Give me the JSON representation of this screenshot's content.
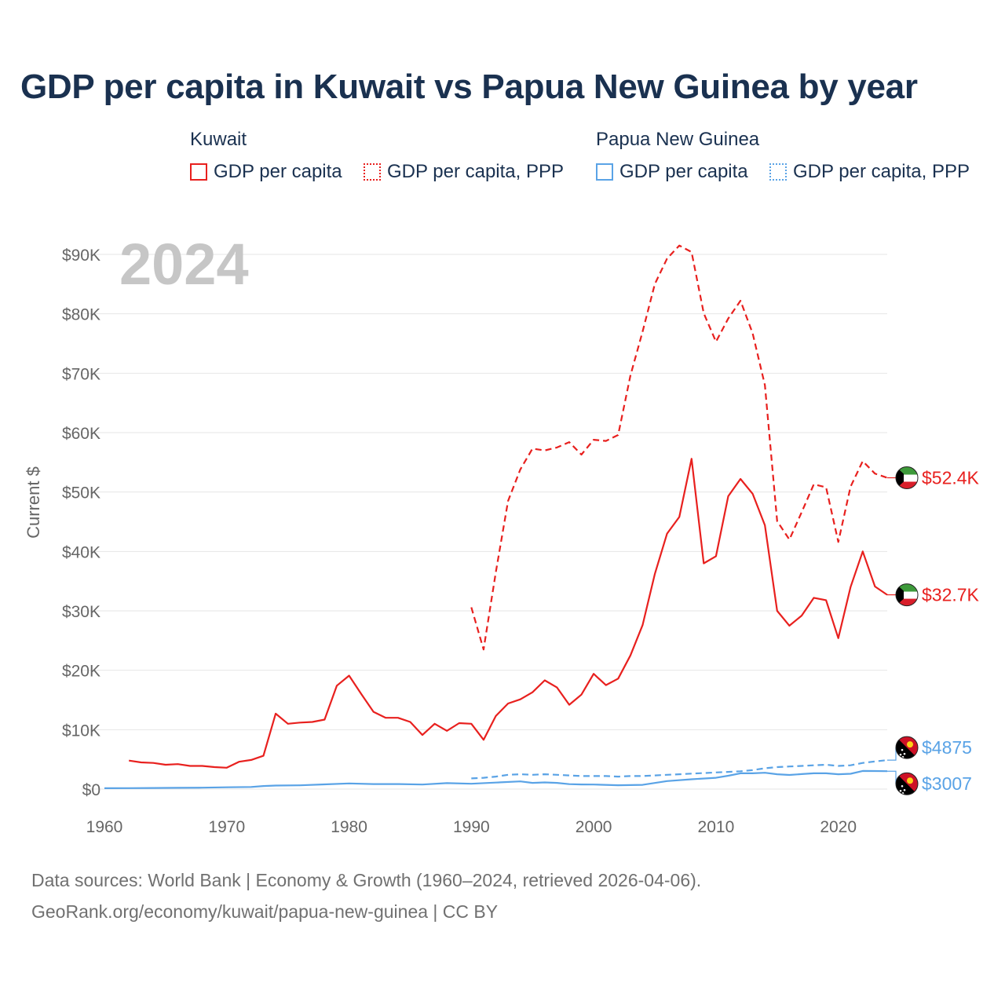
{
  "page": {
    "title": "GDP per capita in Kuwait vs Papua New Guinea by year",
    "source_line1": "Data sources: World Bank | Economy & Growth (1960–2024, retrieved 2026-04-06).",
    "source_line2": "GeoRank.org/economy/kuwait/papua-new-guinea | CC BY"
  },
  "legend": {
    "groups": [
      {
        "country": "Kuwait",
        "items": [
          "GDP per capita",
          "GDP per capita, PPP"
        ],
        "color": "#e8201e"
      },
      {
        "country": "Papua New Guinea",
        "items": [
          "GDP per capita",
          "GDP per capita, PPP"
        ],
        "color": "#5aa3e6"
      }
    ]
  },
  "chart_data": {
    "type": "line",
    "title": "GDP per capita in Kuwait vs Papua New Guinea by year",
    "xlabel": "",
    "ylabel": "Current $",
    "xlim": [
      1960,
      2024
    ],
    "ylim": [
      0,
      93000
    ],
    "year_watermark": "2024",
    "x_ticks": [
      1960,
      1970,
      1980,
      1990,
      2000,
      2010,
      2020
    ],
    "x_tick_labels": [
      "1960",
      "1970",
      "1980",
      "1990",
      "2000",
      "2010",
      "2020"
    ],
    "y_ticks": [
      0,
      10000,
      20000,
      30000,
      40000,
      50000,
      60000,
      70000,
      80000,
      90000
    ],
    "y_tick_labels": [
      "$0",
      "$10K",
      "$20K",
      "$30K",
      "$40K",
      "$50K",
      "$60K",
      "$70K",
      "$80K",
      "$90K"
    ],
    "grid": true,
    "series": [
      {
        "name": "Kuwait GDP per capita",
        "color": "#e8201e",
        "dash": "solid",
        "end_label": "$32.7K",
        "x": [
          1962,
          1963,
          1964,
          1965,
          1966,
          1967,
          1968,
          1969,
          1970,
          1971,
          1972,
          1973,
          1974,
          1975,
          1976,
          1977,
          1978,
          1979,
          1980,
          1981,
          1982,
          1983,
          1984,
          1985,
          1986,
          1987,
          1988,
          1989,
          1990,
          1991,
          1992,
          1993,
          1994,
          1995,
          1996,
          1997,
          1998,
          1999,
          2000,
          2001,
          2002,
          2003,
          2004,
          2005,
          2006,
          2007,
          2008,
          2009,
          2010,
          2011,
          2012,
          2013,
          2014,
          2015,
          2016,
          2017,
          2018,
          2019,
          2020,
          2021,
          2022,
          2023,
          2024
        ],
        "values": [
          4800,
          4500,
          4400,
          4100,
          4200,
          3900,
          3900,
          3700,
          3600,
          4600,
          4900,
          5600,
          12700,
          11000,
          11200,
          11300,
          11700,
          17400,
          19100,
          16000,
          13000,
          12000,
          12000,
          11300,
          9100,
          11000,
          9800,
          11100,
          11000,
          8300,
          12300,
          14400,
          15100,
          16300,
          18300,
          17100,
          14200,
          15900,
          19400,
          17500,
          18600,
          22500,
          27600,
          36200,
          43000,
          45800,
          55600,
          38000,
          39200,
          49300,
          52200,
          49700,
          44400,
          30000,
          27500,
          29200,
          32200,
          31800,
          25400,
          34000,
          40000,
          34100,
          32700
        ]
      },
      {
        "name": "Kuwait GDP per capita, PPP",
        "color": "#e8201e",
        "dash": "dashed",
        "end_label": "$52.4K",
        "x": [
          1990,
          1991,
          1992,
          1993,
          1994,
          1995,
          1996,
          1997,
          1998,
          1999,
          2000,
          2001,
          2002,
          2003,
          2004,
          2005,
          2006,
          2007,
          2008,
          2009,
          2010,
          2011,
          2012,
          2013,
          2014,
          2015,
          2016,
          2017,
          2018,
          2019,
          2020,
          2021,
          2022,
          2023,
          2024
        ],
        "values": [
          30600,
          23500,
          36500,
          48500,
          53800,
          57300,
          57000,
          57500,
          58400,
          56300,
          58800,
          58600,
          59600,
          69600,
          77000,
          85000,
          89300,
          91500,
          90400,
          80100,
          75300,
          79200,
          82200,
          76700,
          68000,
          45100,
          42000,
          46600,
          51300,
          50800,
          41600,
          50900,
          55200,
          53100,
          52400
        ]
      },
      {
        "name": "Papua New Guinea GDP per capita",
        "color": "#5aa3e6",
        "dash": "solid",
        "end_label": "$3007",
        "x": [
          1960,
          1962,
          1964,
          1966,
          1968,
          1970,
          1972,
          1973,
          1974,
          1976,
          1978,
          1980,
          1982,
          1984,
          1986,
          1988,
          1990,
          1992,
          1994,
          1995,
          1996,
          1997,
          1998,
          1999,
          2000,
          2002,
          2004,
          2006,
          2008,
          2010,
          2011,
          2012,
          2013,
          2014,
          2015,
          2016,
          2017,
          2018,
          2019,
          2020,
          2021,
          2022,
          2023,
          2024
        ],
        "values": [
          150,
          160,
          180,
          210,
          240,
          300,
          360,
          520,
          600,
          640,
          790,
          950,
          850,
          850,
          760,
          1000,
          900,
          1100,
          1300,
          1050,
          1120,
          1050,
          830,
          780,
          760,
          650,
          720,
          1350,
          1650,
          1900,
          2250,
          2650,
          2650,
          2750,
          2500,
          2380,
          2520,
          2650,
          2650,
          2500,
          2580,
          3050,
          3040,
          3007
        ]
      },
      {
        "name": "Papua New Guinea GDP per capita, PPP",
        "color": "#5aa3e6",
        "dash": "dashed",
        "end_label": "$4875",
        "x": [
          1990,
          1991,
          1992,
          1993,
          1994,
          1995,
          1996,
          1997,
          1998,
          1999,
          2000,
          2001,
          2002,
          2003,
          2004,
          2005,
          2006,
          2007,
          2008,
          2009,
          2010,
          2011,
          2012,
          2013,
          2014,
          2015,
          2016,
          2017,
          2018,
          2019,
          2020,
          2021,
          2022,
          2023,
          2024
        ],
        "values": [
          1800,
          1900,
          2100,
          2400,
          2500,
          2400,
          2500,
          2400,
          2300,
          2200,
          2200,
          2200,
          2100,
          2200,
          2200,
          2300,
          2400,
          2500,
          2600,
          2700,
          2800,
          2900,
          3000,
          3200,
          3500,
          3700,
          3800,
          3900,
          4000,
          4100,
          3900,
          4000,
          4400,
          4650,
          4875
        ]
      }
    ]
  }
}
